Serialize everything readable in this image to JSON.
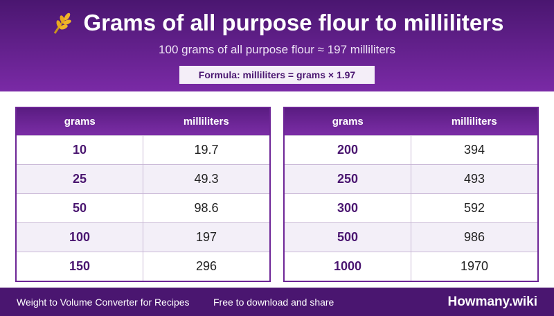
{
  "header": {
    "title": "Grams of all purpose flour to milliliters",
    "subtitle": "100 grams of all purpose flour ≈ 197 milliliters",
    "formula": "Formula: milliliters = grams × 1.97"
  },
  "tables": [
    {
      "columns": [
        "grams",
        "milliliters"
      ],
      "rows": [
        [
          10,
          19.7
        ],
        [
          25,
          49.3
        ],
        [
          50,
          98.6
        ],
        [
          100,
          197
        ],
        [
          150,
          296
        ]
      ]
    },
    {
      "columns": [
        "grams",
        "milliliters"
      ],
      "rows": [
        [
          200,
          394
        ],
        [
          250,
          493
        ],
        [
          300,
          592
        ],
        [
          500,
          986
        ],
        [
          1000,
          1970
        ]
      ]
    }
  ],
  "footer": {
    "left": "Weight to Volume Converter for Recipes",
    "middle": "Free to download and share",
    "brand": "Howmany.wiki"
  }
}
